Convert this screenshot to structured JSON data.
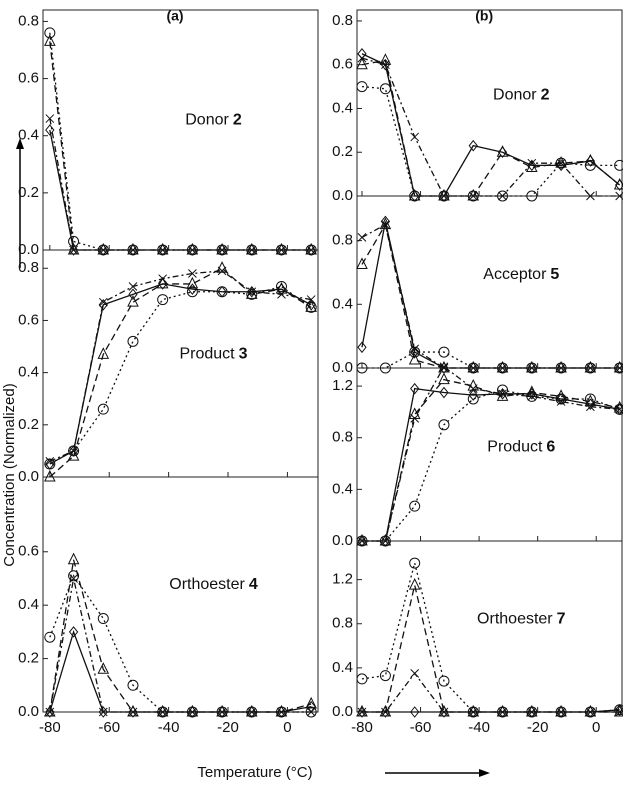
{
  "xlabel": "Temperature (°C)",
  "ylabel": "Concentration (Normalized)",
  "chart_data": [
    {
      "type": "line",
      "label": "(a)",
      "title": "Donor",
      "compound": "2",
      "x": [
        -80,
        -72,
        -62,
        -52,
        -42,
        -32,
        -22,
        -12,
        -2,
        8
      ],
      "xlim": [
        -82.3,
        10.3
      ],
      "xticks": [
        -80,
        -60,
        -40,
        -20,
        0
      ],
      "ylim": [
        0,
        0.84
      ],
      "yticks": [
        {
          "value": 0,
          "label": "0.0"
        },
        0.2,
        0.4,
        0.6,
        0.8
      ],
      "series": [
        {
          "marker": "diamond",
          "dash": "solid",
          "color": "#111",
          "values": [
            0.42,
            0,
            0,
            0,
            0,
            0,
            0,
            0,
            0,
            0
          ]
        },
        {
          "marker": "triangle",
          "dash": "long",
          "color": "#111",
          "values": [
            0.73,
            0,
            0,
            0,
            0,
            0,
            0,
            0,
            0,
            0
          ]
        },
        {
          "marker": "circle",
          "dash": "dot",
          "color": "#111",
          "values": [
            0.76,
            0.03,
            0,
            0,
            0,
            0,
            0,
            0,
            0,
            0
          ]
        },
        {
          "marker": "x",
          "dash": "dashdot",
          "color": "#111",
          "values": [
            0.46,
            0,
            0,
            0,
            0,
            0,
            0,
            0,
            0,
            0
          ]
        }
      ]
    },
    {
      "type": "line",
      "title": "Product",
      "compound": "3",
      "x": [
        -80,
        -72,
        -62,
        -52,
        -42,
        -32,
        -22,
        -12,
        -2,
        8
      ],
      "xlim": [
        -82.3,
        10.3
      ],
      "xticks": [
        -80,
        -60,
        -40,
        -20,
        0
      ],
      "ylim": [
        0,
        0.87
      ],
      "yticks": [
        {
          "value": 0,
          "label": "0.0"
        },
        0.2,
        0.4,
        0.6,
        0.8
      ],
      "series": [
        {
          "marker": "diamond",
          "dash": "solid",
          "color": "#111",
          "values": [
            0.05,
            0.1,
            0.66,
            0.7,
            0.74,
            0.72,
            0.71,
            0.71,
            0.72,
            0.66
          ]
        },
        {
          "marker": "triangle",
          "dash": "long",
          "color": "#111",
          "values": [
            0,
            0.08,
            0.47,
            0.67,
            0.74,
            0.74,
            0.8,
            0.7,
            0.72,
            0.65
          ]
        },
        {
          "marker": "circle",
          "dash": "dot",
          "color": "#111",
          "values": [
            0.05,
            0.1,
            0.26,
            0.52,
            0.68,
            0.71,
            0.71,
            0.7,
            0.73,
            0.65
          ]
        },
        {
          "marker": "x",
          "dash": "dashdot",
          "color": "#111",
          "values": [
            0.06,
            0.1,
            0.67,
            0.73,
            0.76,
            0.78,
            0.79,
            0.71,
            0.7,
            0.68
          ]
        }
      ]
    },
    {
      "type": "line",
      "title": "Orthoester",
      "compound": "4",
      "x": [
        -80,
        -72,
        -62,
        -52,
        -42,
        -32,
        -22,
        -12,
        -2,
        8
      ],
      "xlim": [
        -82.3,
        10.3
      ],
      "xticks": [
        -80,
        -60,
        -40,
        -20,
        0
      ],
      "ylim": [
        0,
        0.88
      ],
      "yticks": [
        {
          "value": 0,
          "label": "0.0"
        },
        0.2,
        0.4,
        0.6
      ],
      "series": [
        {
          "marker": "diamond",
          "dash": "solid",
          "color": "#111",
          "values": [
            0,
            0.3,
            0,
            0,
            0,
            0,
            0,
            0,
            0,
            0.02
          ]
        },
        {
          "marker": "triangle",
          "dash": "long",
          "color": "#111",
          "values": [
            0,
            0.57,
            0.16,
            0,
            0,
            0,
            0,
            0,
            0,
            0.03
          ]
        },
        {
          "marker": "circle",
          "dash": "dot",
          "color": "#111",
          "values": [
            0.28,
            0.51,
            0.35,
            0.1,
            0,
            0,
            0,
            0,
            0,
            0
          ]
        },
        {
          "marker": "x",
          "dash": "dashdot",
          "color": "#111",
          "values": [
            0,
            0.5,
            0,
            0,
            0,
            0,
            0,
            0,
            0,
            0
          ]
        }
      ]
    },
    {
      "type": "line",
      "label": "(b)",
      "title": "Donor",
      "compound": "2",
      "x": [
        -80,
        -72,
        -62,
        -52,
        -42,
        -32,
        -22,
        -12,
        -2,
        8
      ],
      "xlim": [
        -81.7,
        8.8
      ],
      "xticks": [
        -80,
        -60,
        -40,
        -20,
        0
      ],
      "ylim": [
        0,
        0.85
      ],
      "yticks": [
        {
          "value": 0,
          "label": "0.0"
        },
        0.2,
        0.4,
        0.6,
        0.8
      ],
      "series": [
        {
          "marker": "diamond",
          "dash": "solid",
          "color": "#111",
          "values": [
            0.65,
            0.6,
            0,
            0,
            0.23,
            0.2,
            0.14,
            0.14,
            0.16,
            0.05
          ]
        },
        {
          "marker": "triangle",
          "dash": "long",
          "color": "#111",
          "values": [
            0.6,
            0.62,
            0,
            0,
            0,
            0.2,
            0.13,
            0.15,
            0.16,
            0.05
          ]
        },
        {
          "marker": "circle",
          "dash": "dot",
          "color": "#111",
          "values": [
            0.5,
            0.49,
            0,
            0,
            0,
            0,
            0,
            0.15,
            0.14,
            0.14
          ]
        },
        {
          "marker": "x",
          "dash": "dashdot",
          "color": "#111",
          "values": [
            0.63,
            0.6,
            0.27,
            0,
            0,
            0,
            0.15,
            0.15,
            0,
            0
          ]
        }
      ]
    },
    {
      "type": "line",
      "title": "Acceptor",
      "compound": "5",
      "x": [
        -80,
        -72,
        -62,
        -52,
        -42,
        -32,
        -22,
        -12,
        -2,
        8
      ],
      "xlim": [
        -81.7,
        8.8
      ],
      "xticks": [
        -80,
        -60,
        -40,
        -20,
        0
      ],
      "ylim": [
        0,
        1.08
      ],
      "yticks": [
        {
          "value": 0,
          "label": "0.0"
        },
        0.4,
        0.8
      ],
      "series": [
        {
          "marker": "diamond",
          "dash": "solid",
          "color": "#111",
          "values": [
            0.13,
            0.92,
            0.1,
            0,
            0,
            0,
            0,
            0,
            0,
            0
          ]
        },
        {
          "marker": "triangle",
          "dash": "long",
          "color": "#111",
          "values": [
            0.65,
            0.9,
            0.05,
            0,
            0,
            0,
            0,
            0,
            0,
            0
          ]
        },
        {
          "marker": "circle",
          "dash": "dot",
          "color": "#111",
          "values": [
            0,
            0,
            0.1,
            0.1,
            0,
            0,
            0,
            0,
            0,
            0
          ]
        },
        {
          "marker": "x",
          "dash": "dashdot",
          "color": "#111",
          "values": [
            0.82,
            0.9,
            0.12,
            0,
            0,
            0,
            0,
            0,
            0,
            0
          ]
        }
      ]
    },
    {
      "type": "line",
      "title": "Product",
      "compound": "6",
      "x": [
        -80,
        -72,
        -62,
        -52,
        -42,
        -32,
        -22,
        -12,
        -2,
        8
      ],
      "xlim": [
        -81.7,
        8.8
      ],
      "xticks": [
        -80,
        -60,
        -40,
        -20,
        0
      ],
      "ylim": [
        0,
        1.34
      ],
      "yticks": [
        {
          "value": 0,
          "label": "0.0"
        },
        0.4,
        0.8,
        1.2
      ],
      "series": [
        {
          "marker": "diamond",
          "dash": "solid",
          "color": "#111",
          "values": [
            0,
            0,
            1.18,
            1.15,
            1.13,
            1.14,
            1.14,
            1.1,
            1.06,
            1.02
          ]
        },
        {
          "marker": "triangle",
          "dash": "long",
          "color": "#111",
          "values": [
            0,
            0,
            0.98,
            1.25,
            1.2,
            1.12,
            1.15,
            1.12,
            1.08,
            1.03
          ]
        },
        {
          "marker": "circle",
          "dash": "dot",
          "color": "#111",
          "values": [
            0,
            0,
            0.27,
            0.9,
            1.1,
            1.17,
            1.12,
            1.1,
            1.1,
            1.02
          ]
        },
        {
          "marker": "x",
          "dash": "dashdot",
          "color": "#111",
          "values": [
            0,
            0,
            0.95,
            1.35,
            1.18,
            1.14,
            1.12,
            1.08,
            1.04,
            1.02
          ]
        }
      ]
    },
    {
      "type": "line",
      "title": "Orthoester",
      "compound": "7",
      "x": [
        -80,
        -72,
        -62,
        -52,
        -42,
        -32,
        -22,
        -12,
        -2,
        8
      ],
      "xlim": [
        -81.7,
        8.8
      ],
      "xticks": [
        -80,
        -60,
        -40,
        -20,
        0
      ],
      "ylim": [
        0,
        1.55
      ],
      "yticks": [
        {
          "value": 0,
          "label": "0.0"
        },
        0.4,
        0.8,
        1.2
      ],
      "series": [
        {
          "marker": "diamond",
          "dash": "solid",
          "color": "#111",
          "values": [
            0,
            0,
            0,
            0,
            0,
            0,
            0,
            0,
            0,
            0.02
          ]
        },
        {
          "marker": "triangle",
          "dash": "long",
          "color": "#111",
          "values": [
            0,
            0,
            1.15,
            0,
            0,
            0,
            0,
            0,
            0,
            0
          ]
        },
        {
          "marker": "circle",
          "dash": "dot",
          "color": "#111",
          "values": [
            0.3,
            0.33,
            1.35,
            0.28,
            0,
            0,
            0,
            0,
            0,
            0.02
          ]
        },
        {
          "marker": "x",
          "dash": "dashdot",
          "color": "#111",
          "values": [
            0,
            0,
            0.35,
            0,
            0,
            0,
            0,
            0,
            0,
            0
          ]
        }
      ]
    }
  ]
}
